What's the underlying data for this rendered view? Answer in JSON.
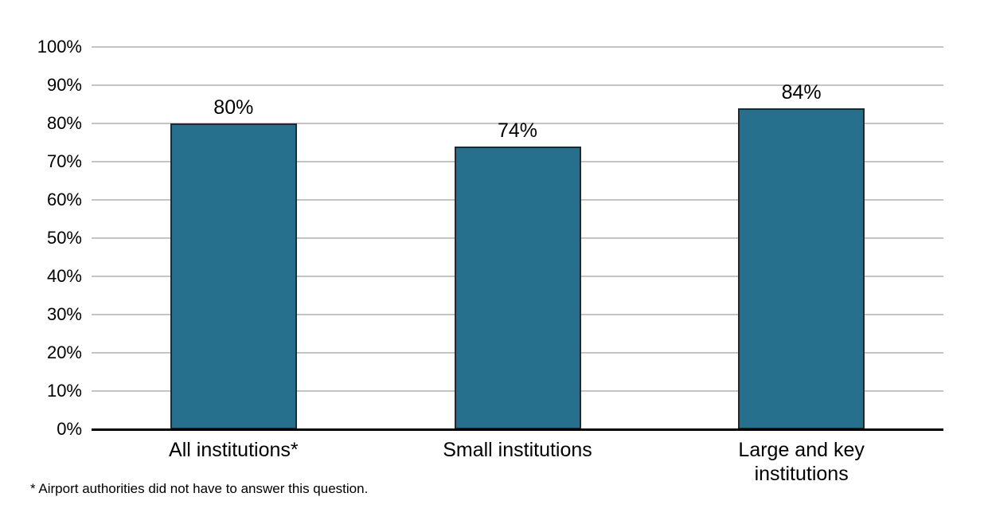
{
  "chart_data": {
    "type": "bar",
    "title": "",
    "categories": [
      "All institutions*",
      "Small institutions",
      "Large and key\ninstitutions"
    ],
    "values": [
      80,
      74,
      84
    ],
    "value_labels": [
      "80%",
      "74%",
      "84%"
    ],
    "yticks": [
      {
        "value": 0,
        "label": "0%"
      },
      {
        "value": 10,
        "label": "10%"
      },
      {
        "value": 20,
        "label": "20%"
      },
      {
        "value": 30,
        "label": "30%"
      },
      {
        "value": 40,
        "label": "40%"
      },
      {
        "value": 50,
        "label": "50%"
      },
      {
        "value": 60,
        "label": "60%"
      },
      {
        "value": 70,
        "label": "70%"
      },
      {
        "value": 80,
        "label": "80%"
      },
      {
        "value": 90,
        "label": "90%"
      },
      {
        "value": 100,
        "label": "100%"
      }
    ],
    "ylim": [
      0,
      100
    ],
    "xlabel": "",
    "ylabel": "",
    "grid": true,
    "legend": "none",
    "colors": {
      "bar_fill": "#26708D",
      "bar_border": "#1C2B33",
      "gridline": "#C4C4C4",
      "axis": "#000000",
      "text": "#000000",
      "background": "#FFFFFF"
    }
  },
  "footnote": "* Airport authorities did not have to answer this question."
}
